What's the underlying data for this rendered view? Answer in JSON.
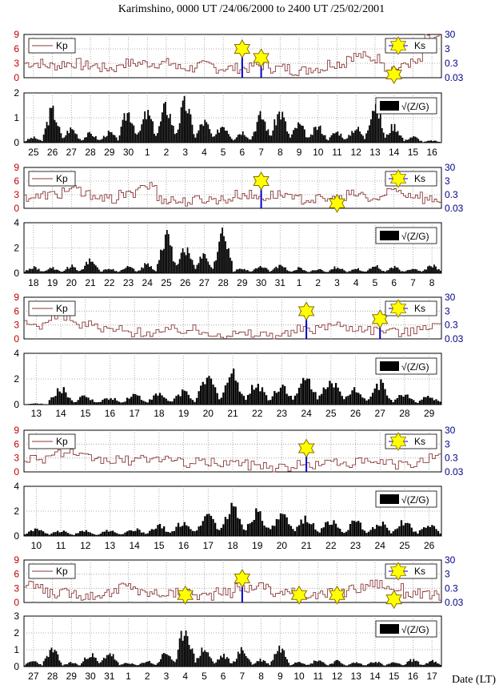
{
  "title": "Karimshino,  0000 UT /24/06/2000  to  2400 UT /25/02/2001",
  "xaxis_label": "Date (LT)",
  "colors": {
    "kp_line": "#8b3a3a",
    "kp_axis": "#c00000",
    "ks_axis": "#00008b",
    "star_fill": "#ffff00",
    "star_stroke": "#8a6d00",
    "ks_stem": "#0000cc",
    "bar": "#000000",
    "grid": "#999999"
  },
  "legend": {
    "kp": "Kp",
    "ks": "Ks",
    "zg": "√(Z/G)"
  },
  "kp_ticks": [
    "0",
    "3",
    "6",
    "9"
  ],
  "ks_ticks": [
    "0.03",
    "0.3",
    "3",
    "30"
  ],
  "chart_data": [
    {
      "type": "bar",
      "panel": 1,
      "dates": [
        "25",
        "26",
        "27",
        "28",
        "29",
        "30",
        "1",
        "2",
        "3",
        "4",
        "5",
        "6",
        "7",
        "8",
        "9",
        "10",
        "11",
        "12",
        "13",
        "14",
        "15",
        "16"
      ],
      "zg_ylim": [
        0,
        2
      ],
      "zg_ticks": [
        "0",
        "1",
        "2"
      ],
      "zg_values": [
        0.25,
        1.6,
        0.7,
        0.45,
        0.5,
        1.55,
        1.45,
        1.8,
        1.95,
        1.05,
        0.9,
        0.55,
        1.35,
        1.55,
        0.9,
        0.8,
        0.55,
        0.75,
        2.0,
        0.85,
        0.3,
        0.1
      ],
      "kp_values": [
        3,
        2.5,
        3,
        2.5,
        2,
        3,
        3,
        3,
        2,
        2.5,
        2,
        2,
        2.5,
        2,
        1.5,
        2,
        3,
        4.5,
        4,
        2,
        3,
        8
      ],
      "ks_events": [
        {
          "date": "6",
          "value": 3
        },
        {
          "date": "7",
          "value": 0.7
        },
        {
          "date": "14",
          "value": 0.05
        }
      ]
    },
    {
      "type": "bar",
      "panel": 2,
      "dates": [
        "18",
        "19",
        "20",
        "21",
        "22",
        "23",
        "24",
        "25",
        "26",
        "27",
        "28",
        "29",
        "30",
        "31",
        "1",
        "2",
        "3",
        "4",
        "5",
        "6",
        "7",
        "8"
      ],
      "zg_ylim": [
        0,
        4
      ],
      "zg_ticks": [
        "0",
        "2",
        "4"
      ],
      "zg_values": [
        0.6,
        0.5,
        0.7,
        1.2,
        0.5,
        0.6,
        0.9,
        3.5,
        2.5,
        1.8,
        3.9,
        0.5,
        0.7,
        0.8,
        0.5,
        0.4,
        0.6,
        0.5,
        0.7,
        0.6,
        0.5,
        0.8
      ],
      "kp_values": [
        2.5,
        3,
        4,
        3,
        2,
        3,
        5,
        2,
        1.5,
        2,
        2,
        3,
        2.5,
        3,
        2,
        2,
        2,
        3,
        2,
        4,
        3,
        2
      ],
      "ks_events": [
        {
          "date": "30",
          "value": 3
        },
        {
          "date": "3",
          "value": 0.07
        }
      ]
    },
    {
      "type": "bar",
      "panel": 3,
      "dates": [
        "13",
        "14",
        "15",
        "16",
        "17",
        "18",
        "19",
        "20",
        "21",
        "22",
        "23",
        "24",
        "25",
        "26",
        "27",
        "28",
        "29"
      ],
      "zg_ylim": [
        0,
        4
      ],
      "zg_ticks": [
        "0",
        "2",
        "4"
      ],
      "zg_values": [
        0.1,
        1.5,
        0.8,
        0.7,
        1.0,
        1.0,
        1.3,
        2.5,
        3.0,
        2.0,
        1.9,
        2.5,
        2.6,
        1.6,
        2.0,
        1.0,
        0.8
      ],
      "kp_values": [
        3,
        5,
        3,
        2,
        1.5,
        1.5,
        2,
        1.5,
        1,
        1,
        1,
        2,
        3,
        2.5,
        2,
        1.5,
        3
      ],
      "ks_events": [
        {
          "date": "24",
          "value": 3
        },
        {
          "date": "27",
          "value": 0.8
        }
      ]
    },
    {
      "type": "bar",
      "panel": 4,
      "dates": [
        "10",
        "11",
        "12",
        "13",
        "14",
        "15",
        "16",
        "17",
        "18",
        "19",
        "20",
        "21",
        "22",
        "23",
        "24",
        "25",
        "26"
      ],
      "zg_ylim": [
        0,
        4
      ],
      "zg_ticks": [
        "0",
        "2",
        "4"
      ],
      "zg_values": [
        0.7,
        0.5,
        0.5,
        0.6,
        0.7,
        1.0,
        1.4,
        2.2,
        2.8,
        2.5,
        2.0,
        1.9,
        1.5,
        1.4,
        1.3,
        1.4,
        1.2
      ],
      "kp_values": [
        3,
        4,
        3,
        2.5,
        2.5,
        3,
        2,
        2,
        2,
        1.5,
        1,
        1.5,
        2,
        2,
        2,
        1.5,
        3
      ],
      "ks_events": [
        {
          "date": "21",
          "value": 1.5
        }
      ]
    },
    {
      "type": "bar",
      "panel": 5,
      "dates": [
        "27",
        "28",
        "29",
        "30",
        "31",
        "1",
        "2",
        "3",
        "4",
        "5",
        "6",
        "7",
        "8",
        "9",
        "10",
        "11",
        "12",
        "13",
        "14",
        "15",
        "16",
        "17"
      ],
      "zg_ylim": [
        0,
        3
      ],
      "zg_ticks": [
        "0",
        "1",
        "2",
        "3"
      ],
      "zg_values": [
        0.4,
        1.2,
        0.3,
        0.9,
        1.0,
        0.3,
        0.4,
        1.0,
        2.8,
        1.3,
        0.8,
        1.2,
        0.5,
        1.4,
        0.4,
        0.5,
        0.4,
        0.3,
        0.4,
        0.3,
        0.5,
        0.4
      ],
      "kp_values": [
        3.5,
        2,
        2,
        1.5,
        2,
        3.5,
        2,
        2,
        2,
        1.5,
        2,
        3,
        3.5,
        2,
        2,
        1.5,
        2,
        3,
        4,
        3,
        2,
        1.5
      ],
      "ks_events": [
        {
          "date": "4",
          "value": 0.1
        },
        {
          "date": "7",
          "value": 1.5
        },
        {
          "date": "10",
          "value": 0.1
        },
        {
          "date": "12",
          "value": 0.1
        },
        {
          "date": "15",
          "value": 0.05
        }
      ]
    }
  ]
}
